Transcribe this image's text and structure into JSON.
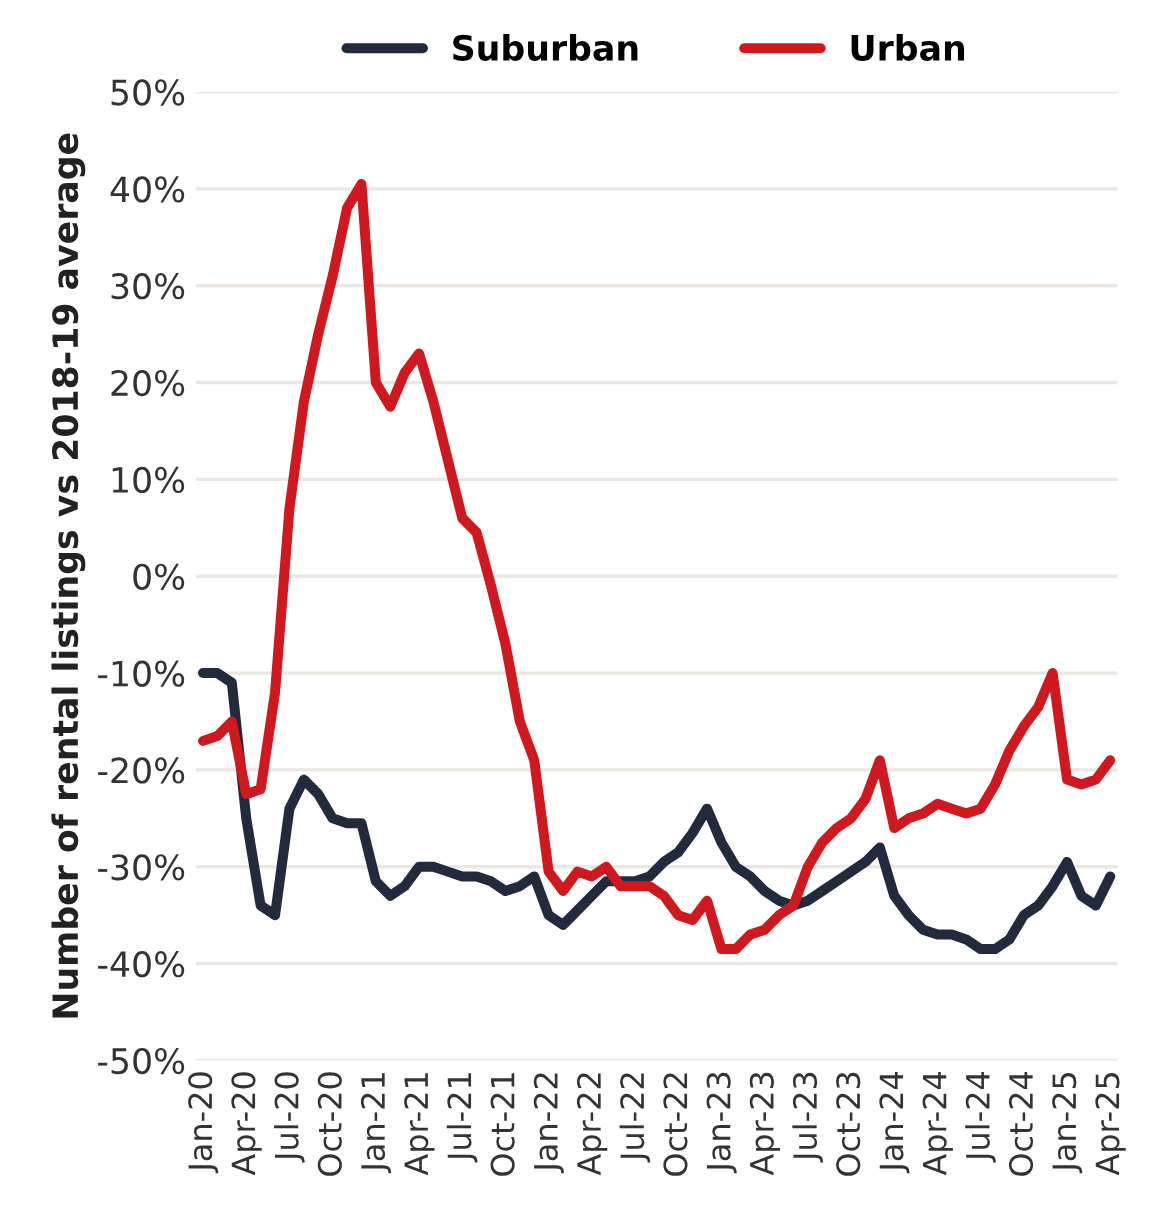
{
  "chart_data": {
    "type": "line",
    "ylabel": "Number of rental listings vs 2018-19 average",
    "categories": [
      "Jan-20",
      null,
      null,
      "Apr-20",
      null,
      null,
      "Jul-20",
      null,
      null,
      "Oct-20",
      null,
      null,
      "Jan-21",
      null,
      null,
      "Apr-21",
      null,
      null,
      "Jul-21",
      null,
      null,
      "Oct-21",
      null,
      null,
      "Jan-22",
      null,
      null,
      "Apr-22",
      null,
      null,
      "Jul-22",
      null,
      null,
      "Oct-22",
      null,
      null,
      "Jan-23",
      null,
      null,
      "Apr-23",
      null,
      null,
      "Jul-23",
      null,
      null,
      "Oct-23",
      null,
      null,
      "Jan-24",
      null,
      null,
      "Apr-24",
      null,
      null,
      "Jul-24",
      null,
      null,
      "Oct-24",
      null,
      null,
      "Jan-25",
      null,
      null,
      "Apr-25"
    ],
    "series": [
      {
        "name": "Suburban",
        "color": "#222a3d",
        "values": [
          -10,
          -10,
          -11,
          -25,
          -34,
          -35,
          -24,
          -21,
          -22.5,
          -25,
          -25.5,
          -25.5,
          -31.5,
          -33,
          -32,
          -30,
          -30,
          -30.5,
          -31,
          -31,
          -31.5,
          -32.5,
          -32,
          -31,
          -35,
          -36,
          -34.5,
          -33,
          -31.5,
          -31.5,
          -31.5,
          -31,
          -29.5,
          -28.5,
          -26.5,
          -24,
          -27.5,
          -30,
          -31,
          -32.5,
          -33.5,
          -34,
          -33.5,
          -32.5,
          -31.5,
          -30.5,
          -29.5,
          -28,
          -33,
          -35,
          -36.5,
          -37,
          -37,
          -37.5,
          -38.5,
          -38.5,
          -37.5,
          -35,
          -34,
          -32,
          -29.5,
          -33,
          -34,
          -31
        ]
      },
      {
        "name": "Urban",
        "color": "#d0181f",
        "values": [
          -17,
          -16.5,
          -15,
          -22.5,
          -22,
          -12,
          7,
          18,
          25,
          31,
          38,
          40.5,
          20,
          17.5,
          21,
          23,
          18,
          12,
          6,
          4.5,
          -1,
          -7,
          -15,
          -19,
          -30.5,
          -32.5,
          -30.5,
          -31,
          -30,
          -32,
          -32,
          -32,
          -33,
          -35,
          -35.5,
          -33.5,
          -38.5,
          -38.5,
          -37,
          -36.5,
          -35,
          -34,
          -30,
          -27.5,
          -26,
          -25,
          -23,
          -19,
          -26,
          -25,
          -24.5,
          -23.5,
          -24,
          -24.5,
          -24,
          -21.5,
          -18,
          -15.5,
          -13.5,
          -10,
          -21,
          -21.5,
          -21,
          -19
        ]
      }
    ],
    "ylim": [
      -50,
      50
    ],
    "yticks": [
      {
        "value": -50,
        "label": "-50%"
      },
      {
        "value": -40,
        "label": "-40%"
      },
      {
        "value": -30,
        "label": "-30%"
      },
      {
        "value": -20,
        "label": "-20%"
      },
      {
        "value": -10,
        "label": "-10%"
      },
      {
        "value": 0,
        "label": "0%"
      },
      {
        "value": 10,
        "label": "10%"
      },
      {
        "value": 20,
        "label": "20%"
      },
      {
        "value": 30,
        "label": "30%"
      },
      {
        "value": 40,
        "label": "40%"
      },
      {
        "value": 50,
        "label": "50%"
      }
    ],
    "grid": "y",
    "legend": "top",
    "line_style": "solid",
    "marker": "none"
  }
}
